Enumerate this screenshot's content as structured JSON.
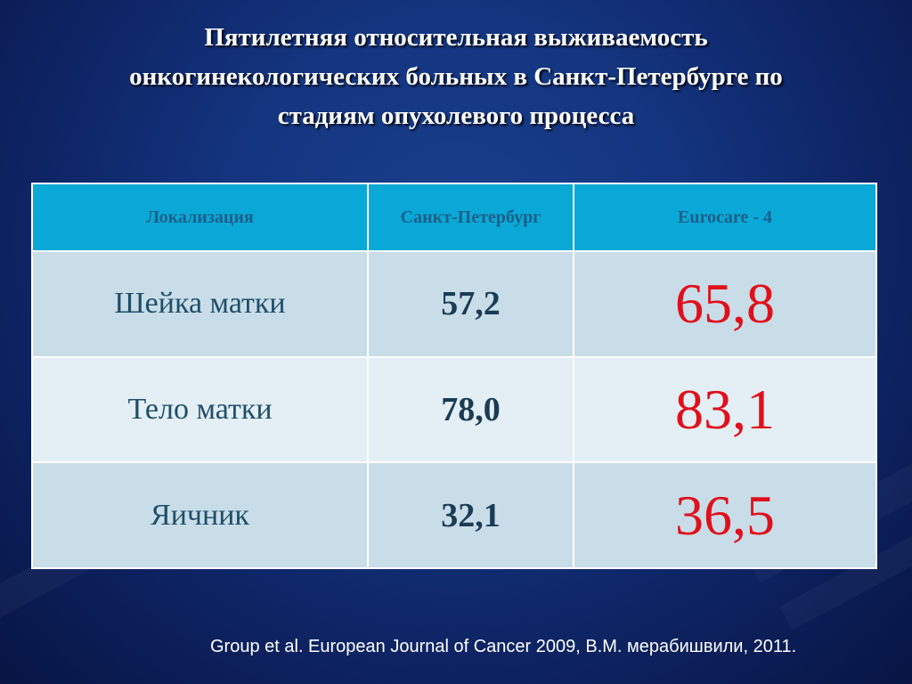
{
  "title": {
    "lines": [
      "Пятилетняя относительная выживаемость",
      "онкогинекологических больных в Санкт-Петербурге по",
      "стадиям опухолевого процесса"
    ]
  },
  "table": {
    "headers": [
      "Локализация",
      "Санкт-Петербург",
      "Eurocare - 4"
    ],
    "rows": [
      {
        "location": "Шейка матки",
        "spb": "57,2",
        "eurocare": "65,8"
      },
      {
        "location": "Тело матки",
        "spb": "78,0",
        "eurocare": "83,1"
      },
      {
        "location": "Яичник",
        "spb": "32,1",
        "eurocare": "36,5"
      }
    ]
  },
  "footer": {
    "source": "Group et al. European Journal of Cancer 2009, В.М. мерабишвили, 2011."
  },
  "colors": {
    "background": "#143580",
    "header_fill": "#0aa8d6",
    "header_text": "#1d5f8a",
    "row_odd": "#c9dde9",
    "row_even": "#e3eef5",
    "eurocare_text": "#e0101a"
  }
}
